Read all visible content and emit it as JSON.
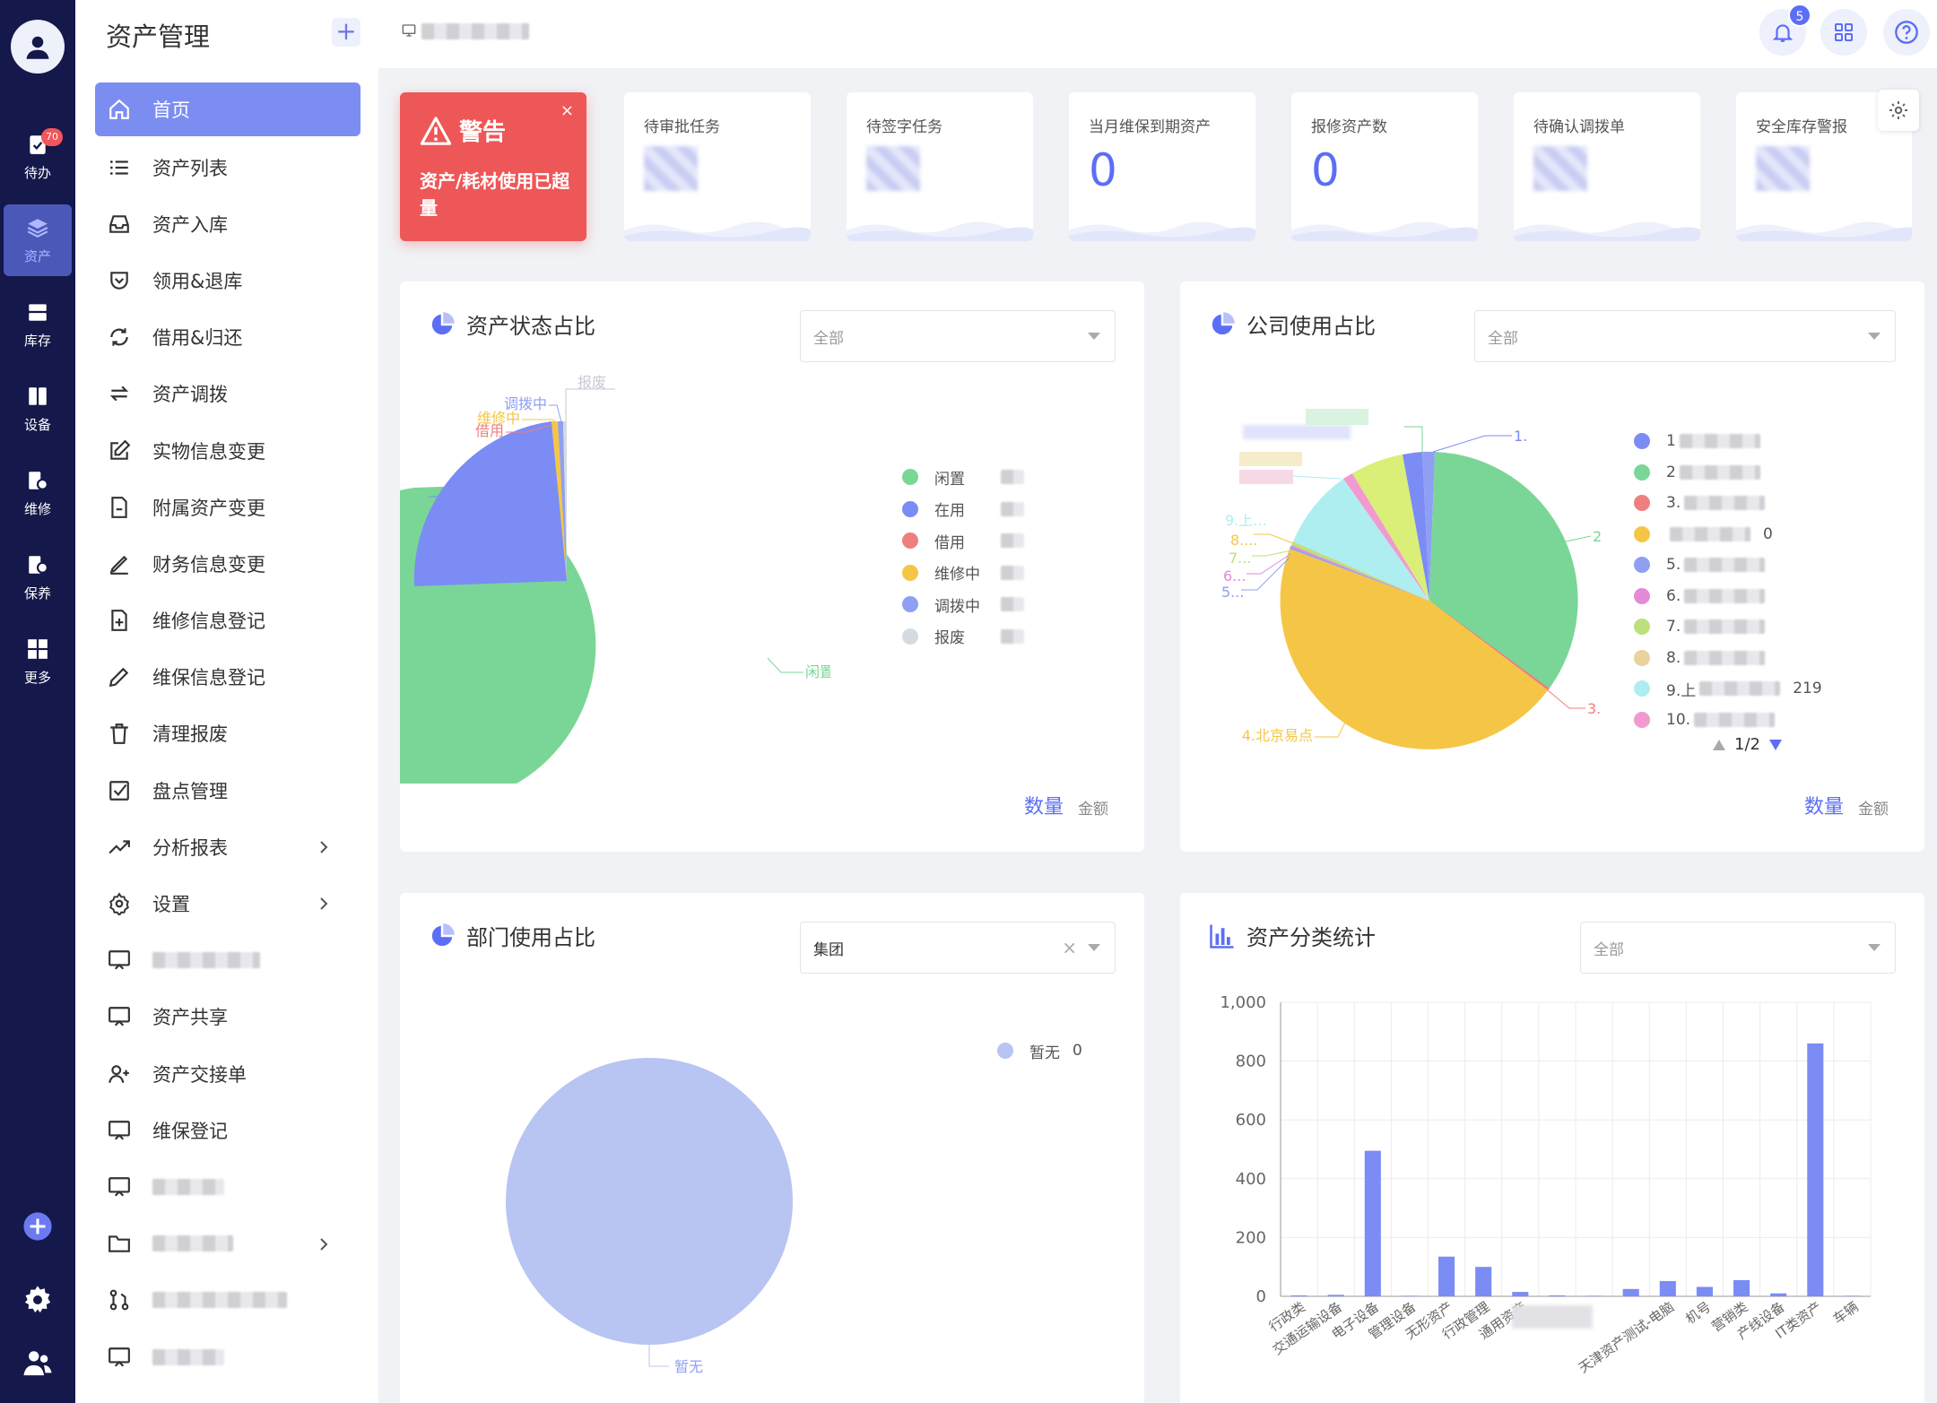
{
  "rail": {
    "items": [
      {
        "label": "待办",
        "icon": "clipboard-check-icon",
        "badge": "70"
      },
      {
        "label": "资产",
        "icon": "layers-icon"
      },
      {
        "label": "库存",
        "icon": "inventory-icon"
      },
      {
        "label": "设备",
        "icon": "device-icon"
      },
      {
        "label": "维修",
        "icon": "repair-icon"
      },
      {
        "label": "保养",
        "icon": "maintenance-icon"
      },
      {
        "label": "更多",
        "icon": "grid-icon"
      }
    ]
  },
  "menu": {
    "title": "资产管理",
    "add_label": "+",
    "items": [
      {
        "label": "首页",
        "icon": "home-icon",
        "active": true
      },
      {
        "label": "资产列表",
        "icon": "list-icon"
      },
      {
        "label": "资产入库",
        "icon": "inbox-icon"
      },
      {
        "label": "领用&退库",
        "icon": "shield-check-icon"
      },
      {
        "label": "借用&归还",
        "icon": "refresh-icon"
      },
      {
        "label": "资产调拨",
        "icon": "transfer-icon"
      },
      {
        "label": "实物信息变更",
        "icon": "edit-icon"
      },
      {
        "label": "附属资产变更",
        "icon": "document-icon"
      },
      {
        "label": "财务信息变更",
        "icon": "pen-icon"
      },
      {
        "label": "维修信息登记",
        "icon": "file-plus-icon"
      },
      {
        "label": "维保信息登记",
        "icon": "pencil-icon"
      },
      {
        "label": "清理报废",
        "icon": "trash-icon"
      },
      {
        "label": "盘点管理",
        "icon": "checkbox-icon"
      },
      {
        "label": "分析报表",
        "icon": "trend-icon",
        "arrow": true
      },
      {
        "label": "设置",
        "icon": "gear-icon",
        "arrow": true
      },
      {
        "label": "",
        "icon": "screen-icon",
        "blur": 120
      },
      {
        "label": "资产共享",
        "icon": "screen-icon"
      },
      {
        "label": "资产交接单",
        "icon": "user-plus-icon"
      },
      {
        "label": "维保登记",
        "icon": "screen-icon"
      },
      {
        "label": "",
        "icon": "screen-icon",
        "blur": 80
      },
      {
        "label": "",
        "icon": "folder-icon",
        "blur": 90,
        "arrow": true
      },
      {
        "label": "",
        "icon": "branch-icon",
        "blur": 150
      },
      {
        "label": "",
        "icon": "screen-icon",
        "blur": 80
      }
    ]
  },
  "topbar": {
    "notification_count": "5"
  },
  "warning": {
    "title": "警告",
    "body": "资产/耗材使用已超量",
    "close": "×"
  },
  "stats": [
    {
      "label": "待审批任务",
      "value": null
    },
    {
      "label": "待签字任务",
      "value": null
    },
    {
      "label": "当月维保到期资产",
      "value": "0"
    },
    {
      "label": "报修资产数",
      "value": "0"
    },
    {
      "label": "待确认调拨单",
      "value": null
    },
    {
      "label": "安全库存警报",
      "value": null
    }
  ],
  "status_card": {
    "title": "资产状态占比",
    "select": "全部",
    "toggle_active": "数量",
    "toggle_other": "金额",
    "legend": [
      {
        "name": "闲置",
        "color": "#7ad697"
      },
      {
        "name": "在用",
        "color": "#7b8cf5"
      },
      {
        "name": "借用",
        "color": "#ef7f7f"
      },
      {
        "name": "维修中",
        "color": "#f5c646"
      },
      {
        "name": "调拨中",
        "color": "#8fa0f2"
      },
      {
        "name": "报废",
        "color": "#d6dbe2"
      }
    ],
    "pie_labels": {
      "idle": "闲置",
      "scrap": "报废",
      "transfer": "调拨中",
      "repair": "维修中",
      "borrow": "借用"
    }
  },
  "company_card": {
    "title": "公司使用占比",
    "select": "全部",
    "toggle_active": "数量",
    "toggle_other": "金额",
    "legend": [
      {
        "name": "1",
        "color": "#7b8cf5"
      },
      {
        "name": "2",
        "color": "#7ad697"
      },
      {
        "name": "3.",
        "color": "#ef7f7f"
      },
      {
        "name": "",
        "color": "#f5c646",
        "value": "0"
      },
      {
        "name": "5.",
        "color": "#8fa0f2"
      },
      {
        "name": "6.",
        "color": "#e58ad6"
      },
      {
        "name": "7.",
        "color": "#bde07e"
      },
      {
        "name": "8.",
        "color": "#e8d49b"
      },
      {
        "name": "9.上",
        "color": "#aeeef0",
        "value": "219"
      },
      {
        "name": "10.",
        "color": "#f29ad0"
      }
    ],
    "pager": "1/2",
    "pie_labels": {
      "bj": "4.北京易点",
      "c2": "2",
      "c3": "3.",
      "c1": "1.",
      "c9": "9.上...",
      "c8": "8....",
      "c7": "7...",
      "c6": "6...",
      "c5": "5..."
    }
  },
  "dept_card": {
    "title": "部门使用占比",
    "select": "集团",
    "clear": "×",
    "legend_name": "暂无",
    "legend_value": "0",
    "pie_label": "暂无"
  },
  "category_card": {
    "title": "资产分类统计",
    "select": "全部"
  },
  "chart_data": {
    "type": "bar",
    "ylim": [
      0,
      1000
    ],
    "yticks": [
      "0",
      "200",
      "400",
      "600",
      "800",
      "1,000"
    ],
    "categories": [
      "行政类",
      "交通运输设备",
      "电子设备",
      "管理设备",
      "无形资产",
      "行政管理",
      "通用资产",
      "",
      "",
      "",
      "天津资产测试-电脑",
      "机号",
      "营销类",
      "产线设备",
      "IT类资产",
      "车辆"
    ],
    "values": [
      3,
      5,
      495,
      2,
      135,
      100,
      15,
      3,
      2,
      25,
      52,
      32,
      55,
      10,
      860,
      2
    ]
  }
}
